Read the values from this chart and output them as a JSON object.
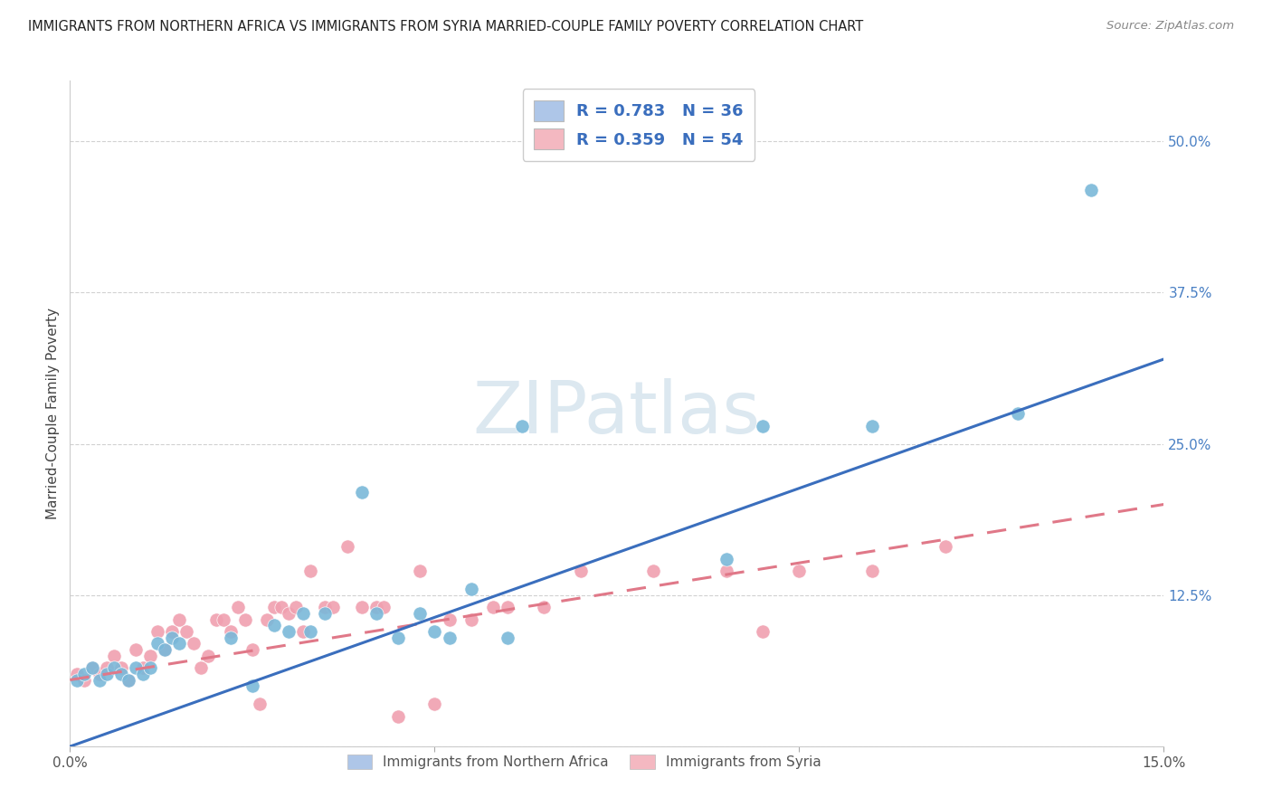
{
  "title": "IMMIGRANTS FROM NORTHERN AFRICA VS IMMIGRANTS FROM SYRIA MARRIED-COUPLE FAMILY POVERTY CORRELATION CHART",
  "source": "Source: ZipAtlas.com",
  "ylabel": "Married-Couple Family Poverty",
  "xlim": [
    0.0,
    0.15
  ],
  "ylim": [
    0.0,
    0.55
  ],
  "xticks": [
    0.0,
    0.05,
    0.1,
    0.15
  ],
  "xticklabels": [
    "0.0%",
    "",
    "",
    "15.0%"
  ],
  "yticks": [
    0.0,
    0.125,
    0.25,
    0.375,
    0.5
  ],
  "yticklabels": [
    "",
    "12.5%",
    "25.0%",
    "37.5%",
    "50.0%"
  ],
  "legend_label1": "R = 0.783   N = 36",
  "legend_label2": "R = 0.359   N = 54",
  "legend_color1": "#aec6e8",
  "legend_color2": "#f4b8c1",
  "color_blue": "#7ab8d9",
  "color_pink": "#f0a0b0",
  "line_blue": "#3a6ebd",
  "line_pink": "#e07888",
  "watermark": "ZIPatlas",
  "watermark_color": "#dce8f0",
  "blue_line_x0": 0.0,
  "blue_line_y0": 0.0,
  "blue_line_x1": 0.15,
  "blue_line_y1": 0.32,
  "pink_line_x0": 0.0,
  "pink_line_y0": 0.055,
  "pink_line_x1": 0.15,
  "pink_line_y1": 0.2,
  "blue_points_x": [
    0.001,
    0.002,
    0.003,
    0.004,
    0.005,
    0.006,
    0.007,
    0.008,
    0.009,
    0.01,
    0.011,
    0.012,
    0.013,
    0.014,
    0.015,
    0.022,
    0.025,
    0.028,
    0.03,
    0.032,
    0.033,
    0.035,
    0.04,
    0.042,
    0.045,
    0.048,
    0.05,
    0.052,
    0.055,
    0.06,
    0.062,
    0.09,
    0.095,
    0.11,
    0.13,
    0.14
  ],
  "blue_points_y": [
    0.055,
    0.06,
    0.065,
    0.055,
    0.06,
    0.065,
    0.06,
    0.055,
    0.065,
    0.06,
    0.065,
    0.085,
    0.08,
    0.09,
    0.085,
    0.09,
    0.05,
    0.1,
    0.095,
    0.11,
    0.095,
    0.11,
    0.21,
    0.11,
    0.09,
    0.11,
    0.095,
    0.09,
    0.13,
    0.09,
    0.265,
    0.155,
    0.265,
    0.265,
    0.275,
    0.46
  ],
  "pink_points_x": [
    0.001,
    0.002,
    0.003,
    0.004,
    0.005,
    0.006,
    0.007,
    0.008,
    0.009,
    0.01,
    0.011,
    0.012,
    0.013,
    0.014,
    0.015,
    0.016,
    0.017,
    0.018,
    0.019,
    0.02,
    0.021,
    0.022,
    0.023,
    0.024,
    0.025,
    0.026,
    0.027,
    0.028,
    0.029,
    0.03,
    0.031,
    0.032,
    0.033,
    0.035,
    0.036,
    0.038,
    0.04,
    0.042,
    0.043,
    0.045,
    0.048,
    0.05,
    0.052,
    0.055,
    0.058,
    0.06,
    0.065,
    0.07,
    0.08,
    0.09,
    0.095,
    0.1,
    0.11,
    0.12
  ],
  "pink_points_y": [
    0.06,
    0.055,
    0.065,
    0.06,
    0.065,
    0.075,
    0.065,
    0.055,
    0.08,
    0.065,
    0.075,
    0.095,
    0.08,
    0.095,
    0.105,
    0.095,
    0.085,
    0.065,
    0.075,
    0.105,
    0.105,
    0.095,
    0.115,
    0.105,
    0.08,
    0.035,
    0.105,
    0.115,
    0.115,
    0.11,
    0.115,
    0.095,
    0.145,
    0.115,
    0.115,
    0.165,
    0.115,
    0.115,
    0.115,
    0.025,
    0.145,
    0.035,
    0.105,
    0.105,
    0.115,
    0.115,
    0.115,
    0.145,
    0.145,
    0.145,
    0.095,
    0.145,
    0.145,
    0.165
  ]
}
